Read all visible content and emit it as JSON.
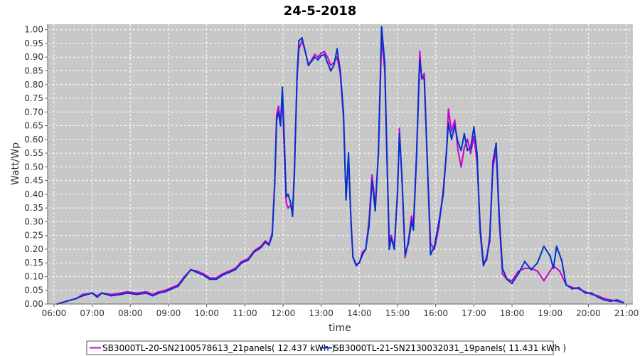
{
  "chart_data": {
    "type": "line",
    "title": "24-5-2018",
    "xlabel": "time",
    "ylabel": "Watt/Wp",
    "x_ticks": [
      "06:00",
      "07:00",
      "08:00",
      "09:00",
      "10:00",
      "11:00",
      "12:00",
      "13:00",
      "14:00",
      "15:00",
      "16:00",
      "17:00",
      "18:00",
      "19:00",
      "20:00",
      "21:00"
    ],
    "xlim": [
      "05:50",
      "21:10"
    ],
    "ylim": [
      0,
      1.02
    ],
    "y_ticks": [
      "0.00",
      "0.05",
      "0.10",
      "0.15",
      "0.20",
      "0.25",
      "0.30",
      "0.35",
      "0.40",
      "0.45",
      "0.50",
      "0.55",
      "0.60",
      "0.65",
      "0.70",
      "0.75",
      "0.80",
      "0.85",
      "0.90",
      "0.95",
      "1.00"
    ],
    "grid": true,
    "legend_position": "bottom",
    "series": [
      {
        "name": "SB3000TL-20-SN2100578613_21panels( 12.437 kWh )",
        "color": "#cc00cc",
        "points": [
          [
            "06:05",
            0.0
          ],
          [
            "06:20",
            0.01
          ],
          [
            "06:35",
            0.02
          ],
          [
            "06:45",
            0.035
          ],
          [
            "07:00",
            0.04
          ],
          [
            "07:08",
            0.03
          ],
          [
            "07:15",
            0.04
          ],
          [
            "07:30",
            0.035
          ],
          [
            "07:45",
            0.04
          ],
          [
            "07:55",
            0.045
          ],
          [
            "08:10",
            0.04
          ],
          [
            "08:25",
            0.045
          ],
          [
            "08:35",
            0.035
          ],
          [
            "08:45",
            0.045
          ],
          [
            "08:55",
            0.05
          ],
          [
            "09:05",
            0.06
          ],
          [
            "09:15",
            0.07
          ],
          [
            "09:25",
            0.1
          ],
          [
            "09:35",
            0.125
          ],
          [
            "09:45",
            0.12
          ],
          [
            "09:55",
            0.11
          ],
          [
            "10:05",
            0.095
          ],
          [
            "10:15",
            0.095
          ],
          [
            "10:25",
            0.11
          ],
          [
            "10:35",
            0.12
          ],
          [
            "10:45",
            0.13
          ],
          [
            "10:55",
            0.155
          ],
          [
            "11:05",
            0.165
          ],
          [
            "11:15",
            0.195
          ],
          [
            "11:25",
            0.21
          ],
          [
            "11:32",
            0.23
          ],
          [
            "11:38",
            0.22
          ],
          [
            "11:43",
            0.26
          ],
          [
            "11:47",
            0.45
          ],
          [
            "11:50",
            0.69
          ],
          [
            "11:53",
            0.72
          ],
          [
            "11:56",
            0.66
          ],
          [
            "11:59",
            0.75
          ],
          [
            "12:02",
            0.55
          ],
          [
            "12:05",
            0.37
          ],
          [
            "12:08",
            0.35
          ],
          [
            "12:12",
            0.36
          ],
          [
            "12:15",
            0.33
          ],
          [
            "12:18",
            0.5
          ],
          [
            "12:22",
            0.82
          ],
          [
            "12:25",
            0.93
          ],
          [
            "12:30",
            0.96
          ],
          [
            "12:35",
            0.92
          ],
          [
            "12:40",
            0.87
          ],
          [
            "12:45",
            0.89
          ],
          [
            "12:50",
            0.91
          ],
          [
            "12:55",
            0.9
          ],
          [
            "13:00",
            0.915
          ],
          [
            "13:05",
            0.92
          ],
          [
            "13:10",
            0.9
          ],
          [
            "13:15",
            0.87
          ],
          [
            "13:20",
            0.88
          ],
          [
            "13:25",
            0.9
          ],
          [
            "13:30",
            0.84
          ],
          [
            "13:35",
            0.68
          ],
          [
            "13:39",
            0.39
          ],
          [
            "13:43",
            0.53
          ],
          [
            "13:47",
            0.3
          ],
          [
            "13:50",
            0.17
          ],
          [
            "13:55",
            0.145
          ],
          [
            "14:00",
            0.15
          ],
          [
            "14:05",
            0.19
          ],
          [
            "14:10",
            0.2
          ],
          [
            "14:15",
            0.3
          ],
          [
            "14:20",
            0.47
          ],
          [
            "14:25",
            0.36
          ],
          [
            "14:30",
            0.55
          ],
          [
            "14:35",
            0.97
          ],
          [
            "14:40",
            0.85
          ],
          [
            "14:43",
            0.56
          ],
          [
            "14:47",
            0.23
          ],
          [
            "14:50",
            0.25
          ],
          [
            "14:55",
            0.21
          ],
          [
            "15:00",
            0.4
          ],
          [
            "15:03",
            0.64
          ],
          [
            "15:07",
            0.45
          ],
          [
            "15:12",
            0.17
          ],
          [
            "15:17",
            0.23
          ],
          [
            "15:22",
            0.32
          ],
          [
            "15:25",
            0.29
          ],
          [
            "15:30",
            0.55
          ],
          [
            "15:35",
            0.92
          ],
          [
            "15:38",
            0.82
          ],
          [
            "15:42",
            0.84
          ],
          [
            "15:47",
            0.5
          ],
          [
            "15:52",
            0.22
          ],
          [
            "15:58",
            0.2
          ],
          [
            "16:05",
            0.28
          ],
          [
            "16:12",
            0.42
          ],
          [
            "16:17",
            0.55
          ],
          [
            "16:20",
            0.71
          ],
          [
            "16:25",
            0.63
          ],
          [
            "16:30",
            0.67
          ],
          [
            "16:35",
            0.56
          ],
          [
            "16:40",
            0.5
          ],
          [
            "16:45",
            0.57
          ],
          [
            "16:50",
            0.6
          ],
          [
            "16:55",
            0.55
          ],
          [
            "17:00",
            0.61
          ],
          [
            "17:05",
            0.52
          ],
          [
            "17:10",
            0.28
          ],
          [
            "17:15",
            0.15
          ],
          [
            "17:20",
            0.16
          ],
          [
            "17:25",
            0.25
          ],
          [
            "17:30",
            0.5
          ],
          [
            "17:35",
            0.56
          ],
          [
            "17:40",
            0.3
          ],
          [
            "17:45",
            0.11
          ],
          [
            "17:52",
            0.09
          ],
          [
            "18:00",
            0.085
          ],
          [
            "18:10",
            0.12
          ],
          [
            "18:20",
            0.13
          ],
          [
            "18:30",
            0.13
          ],
          [
            "18:40",
            0.12
          ],
          [
            "18:50",
            0.085
          ],
          [
            "19:00",
            0.12
          ],
          [
            "19:05",
            0.14
          ],
          [
            "19:15",
            0.12
          ],
          [
            "19:25",
            0.07
          ],
          [
            "19:35",
            0.06
          ],
          [
            "19:45",
            0.055
          ],
          [
            "19:55",
            0.045
          ],
          [
            "20:05",
            0.035
          ],
          [
            "20:15",
            0.03
          ],
          [
            "20:25",
            0.02
          ],
          [
            "20:35",
            0.015
          ],
          [
            "20:45",
            0.01
          ],
          [
            "20:55",
            0.005
          ]
        ]
      },
      {
        "name": "SB3000TL-21-SN2130032031_19panels( 11.431 kWh )",
        "color": "#0033cc",
        "points": [
          [
            "06:05",
            0.0
          ],
          [
            "06:20",
            0.01
          ],
          [
            "06:35",
            0.02
          ],
          [
            "06:45",
            0.03
          ],
          [
            "07:00",
            0.04
          ],
          [
            "07:08",
            0.025
          ],
          [
            "07:15",
            0.04
          ],
          [
            "07:30",
            0.03
          ],
          [
            "07:45",
            0.035
          ],
          [
            "07:55",
            0.04
          ],
          [
            "08:10",
            0.035
          ],
          [
            "08:25",
            0.04
          ],
          [
            "08:35",
            0.03
          ],
          [
            "08:45",
            0.04
          ],
          [
            "08:55",
            0.045
          ],
          [
            "09:05",
            0.055
          ],
          [
            "09:15",
            0.065
          ],
          [
            "09:25",
            0.095
          ],
          [
            "09:35",
            0.125
          ],
          [
            "09:45",
            0.115
          ],
          [
            "09:55",
            0.105
          ],
          [
            "10:05",
            0.09
          ],
          [
            "10:15",
            0.09
          ],
          [
            "10:25",
            0.105
          ],
          [
            "10:35",
            0.115
          ],
          [
            "10:45",
            0.125
          ],
          [
            "10:55",
            0.15
          ],
          [
            "11:05",
            0.16
          ],
          [
            "11:15",
            0.19
          ],
          [
            "11:25",
            0.205
          ],
          [
            "11:32",
            0.225
          ],
          [
            "11:38",
            0.215
          ],
          [
            "11:43",
            0.25
          ],
          [
            "11:47",
            0.44
          ],
          [
            "11:50",
            0.67
          ],
          [
            "11:53",
            0.7
          ],
          [
            "11:56",
            0.65
          ],
          [
            "11:59",
            0.79
          ],
          [
            "12:02",
            0.6
          ],
          [
            "12:05",
            0.39
          ],
          [
            "12:08",
            0.4
          ],
          [
            "12:12",
            0.37
          ],
          [
            "12:15",
            0.32
          ],
          [
            "12:18",
            0.48
          ],
          [
            "12:22",
            0.83
          ],
          [
            "12:25",
            0.96
          ],
          [
            "12:30",
            0.97
          ],
          [
            "12:35",
            0.92
          ],
          [
            "12:40",
            0.87
          ],
          [
            "12:45",
            0.885
          ],
          [
            "12:50",
            0.9
          ],
          [
            "12:55",
            0.89
          ],
          [
            "13:00",
            0.905
          ],
          [
            "13:05",
            0.91
          ],
          [
            "13:10",
            0.88
          ],
          [
            "13:15",
            0.85
          ],
          [
            "13:20",
            0.87
          ],
          [
            "13:25",
            0.93
          ],
          [
            "13:30",
            0.85
          ],
          [
            "13:35",
            0.7
          ],
          [
            "13:39",
            0.38
          ],
          [
            "13:43",
            0.55
          ],
          [
            "13:47",
            0.29
          ],
          [
            "13:50",
            0.17
          ],
          [
            "13:55",
            0.14
          ],
          [
            "14:00",
            0.15
          ],
          [
            "14:05",
            0.18
          ],
          [
            "14:10",
            0.2
          ],
          [
            "14:15",
            0.28
          ],
          [
            "14:20",
            0.45
          ],
          [
            "14:25",
            0.34
          ],
          [
            "14:30",
            0.56
          ],
          [
            "14:35",
            1.01
          ],
          [
            "14:40",
            0.88
          ],
          [
            "14:43",
            0.58
          ],
          [
            "14:47",
            0.2
          ],
          [
            "14:50",
            0.24
          ],
          [
            "14:55",
            0.2
          ],
          [
            "15:00",
            0.41
          ],
          [
            "15:03",
            0.62
          ],
          [
            "15:07",
            0.46
          ],
          [
            "15:12",
            0.18
          ],
          [
            "15:17",
            0.22
          ],
          [
            "15:22",
            0.3
          ],
          [
            "15:25",
            0.27
          ],
          [
            "15:30",
            0.54
          ],
          [
            "15:35",
            0.89
          ],
          [
            "15:38",
            0.83
          ],
          [
            "15:42",
            0.82
          ],
          [
            "15:47",
            0.51
          ],
          [
            "15:52",
            0.18
          ],
          [
            "15:58",
            0.21
          ],
          [
            "16:05",
            0.3
          ],
          [
            "16:12",
            0.4
          ],
          [
            "16:17",
            0.56
          ],
          [
            "16:20",
            0.66
          ],
          [
            "16:25",
            0.6
          ],
          [
            "16:30",
            0.65
          ],
          [
            "16:35",
            0.59
          ],
          [
            "16:40",
            0.56
          ],
          [
            "16:45",
            0.62
          ],
          [
            "16:50",
            0.56
          ],
          [
            "16:55",
            0.57
          ],
          [
            "17:00",
            0.645
          ],
          [
            "17:05",
            0.55
          ],
          [
            "17:10",
            0.26
          ],
          [
            "17:15",
            0.14
          ],
          [
            "17:20",
            0.17
          ],
          [
            "17:25",
            0.23
          ],
          [
            "17:30",
            0.52
          ],
          [
            "17:35",
            0.585
          ],
          [
            "17:40",
            0.32
          ],
          [
            "17:45",
            0.13
          ],
          [
            "17:52",
            0.09
          ],
          [
            "18:00",
            0.075
          ],
          [
            "18:10",
            0.11
          ],
          [
            "18:20",
            0.155
          ],
          [
            "18:30",
            0.125
          ],
          [
            "18:40",
            0.15
          ],
          [
            "18:50",
            0.21
          ],
          [
            "19:00",
            0.175
          ],
          [
            "19:05",
            0.13
          ],
          [
            "19:10",
            0.21
          ],
          [
            "19:18",
            0.16
          ],
          [
            "19:25",
            0.07
          ],
          [
            "19:35",
            0.055
          ],
          [
            "19:45",
            0.06
          ],
          [
            "19:55",
            0.04
          ],
          [
            "20:05",
            0.04
          ],
          [
            "20:15",
            0.025
          ],
          [
            "20:25",
            0.015
          ],
          [
            "20:35",
            0.01
          ],
          [
            "20:45",
            0.015
          ],
          [
            "20:55",
            0.005
          ]
        ]
      }
    ]
  }
}
